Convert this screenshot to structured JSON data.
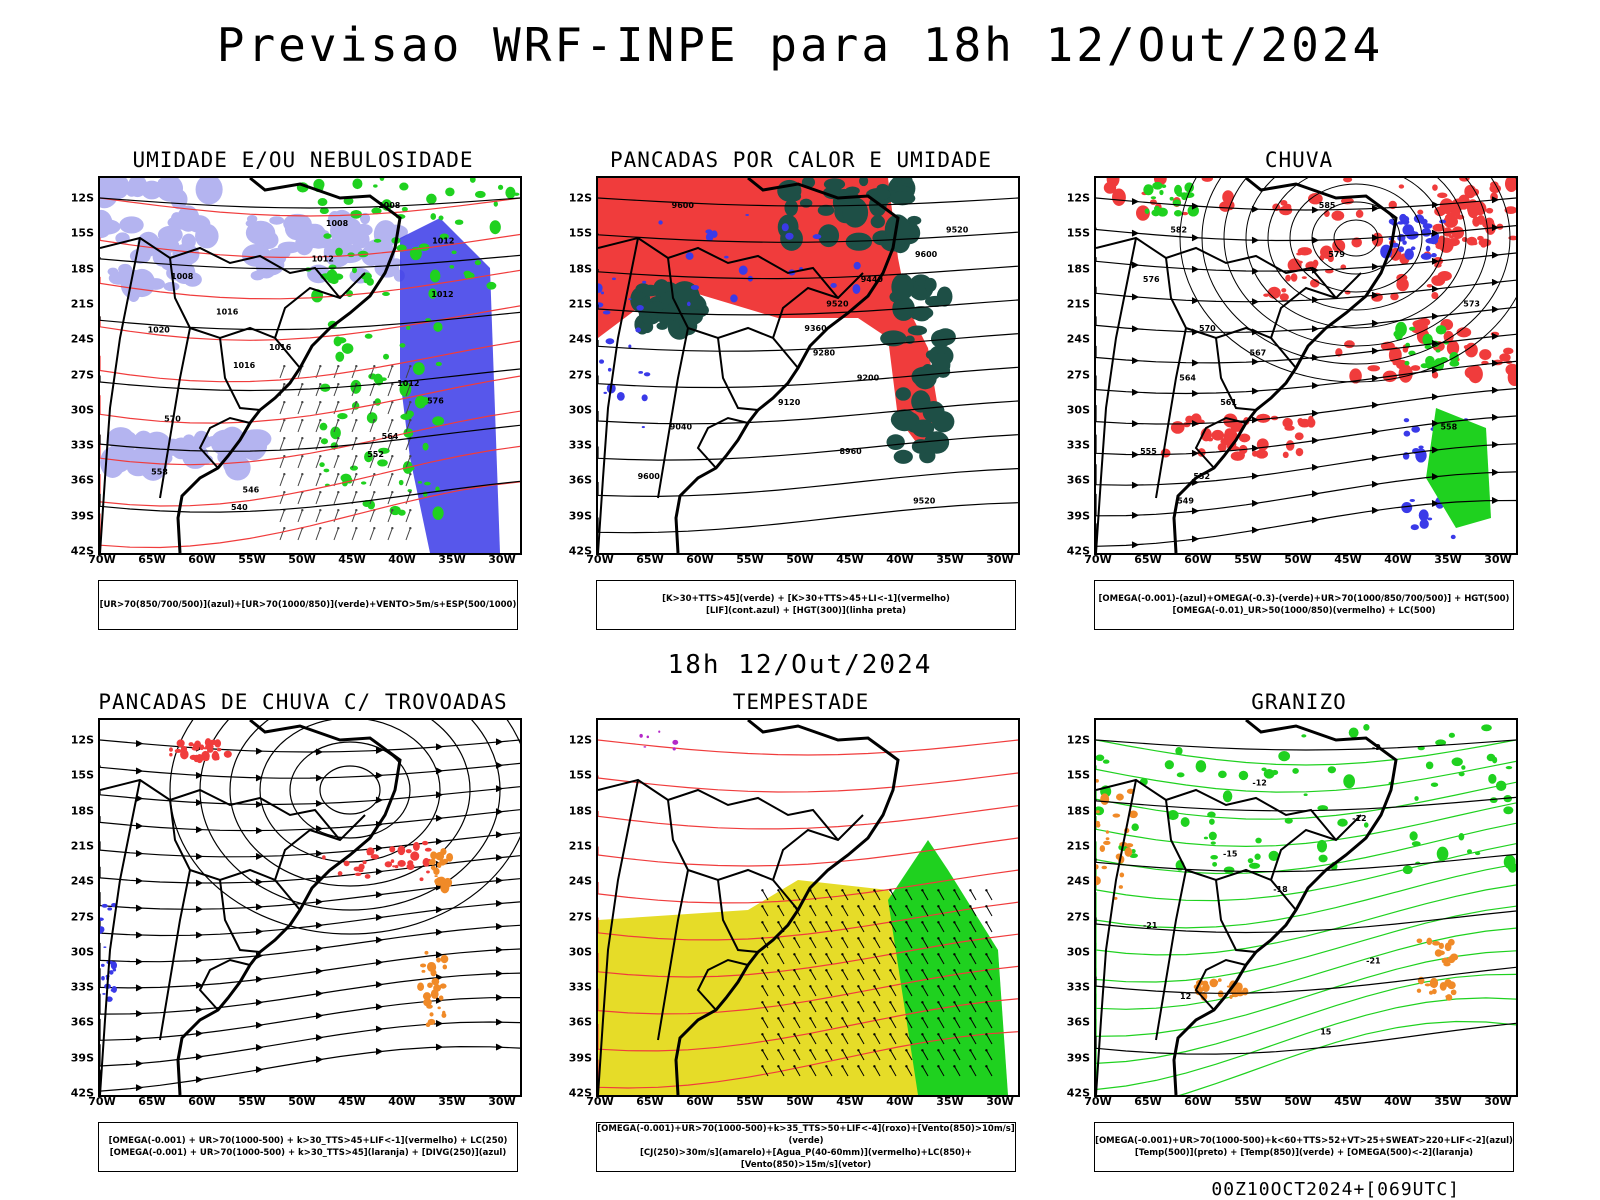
{
  "title": "Previsao WRF-INPE  para 18h 12/Out/2024",
  "subtitle": "18h 12/Out/2024",
  "footer": "00Z10OCT2024+[069UTC]",
  "lat_labels": [
    "12S",
    "15S",
    "18S",
    "21S",
    "24S",
    "27S",
    "30S",
    "33S",
    "36S",
    "39S",
    "42S"
  ],
  "lon_labels": [
    "70W",
    "65W",
    "60W",
    "55W",
    "50W",
    "45W",
    "40W",
    "35W",
    "30W"
  ],
  "colors": {
    "blue": "#3a3ae8",
    "lightblue": "#b4b4f0",
    "green": "#1fd11f",
    "red": "#f03c3c",
    "darkgreen": "#1e4f46",
    "yellow": "#e6dc28",
    "orange": "#f08a28",
    "purple": "#b428c8",
    "black": "#000000"
  },
  "panels": [
    {
      "title": "UMIDADE E/OU NEBULOSIDADE",
      "legend": [
        "[UR>70(850/700/500)](azul)+[UR>70(1000/850)](verde)+VENTO>5m/s+ESP(500/1000)"
      ],
      "contour_labels": [
        "1008",
        "1008",
        "1012",
        "1012",
        "1008",
        "1012",
        "1016",
        "1020",
        "1016",
        "1016",
        "1012",
        "576",
        "570",
        "564",
        "552",
        "558",
        "546",
        "540"
      ]
    },
    {
      "title": "PANCADAS POR CALOR E UMIDADE",
      "legend": [
        "[K>30+TTS>45](verde) + [K>30+TTS>45+LI<-1](vermelho)",
        "[LIF](cont.azul) + [HGT(300)](linha preta)"
      ],
      "contour_labels": [
        "9600",
        "9520",
        "9600",
        "9440",
        "9520",
        "9360",
        "9280",
        "9200",
        "9120",
        "9040",
        "8960",
        "9600",
        "9520"
      ]
    },
    {
      "title": "CHUVA",
      "legend": [
        "[OMEGA(-0.001)-(azul)+OMEGA(-0.3)-(verde)+UR>70(1000/850/700/500)] + HGT(500)",
        "[OMEGA(-0.01)_UR>50(1000/850)(vermelho) + LC(500)"
      ],
      "contour_labels": [
        "585",
        "582",
        "579",
        "576",
        "573",
        "570",
        "567",
        "564",
        "561",
        "558",
        "555",
        "552",
        "549"
      ]
    },
    {
      "title": "PANCADAS DE CHUVA C/ TROVOADAS",
      "legend": [
        "[OMEGA(-0.001) + UR>70(1000-500) + k>30_TTS>45+LIF<-1](vermelho) + LC(250)",
        "[OMEGA(-0.001) + UR>70(1000-500) + k>30_TTS>45](laranja) + [DIVG(250)](azul)"
      ],
      "contour_labels": []
    },
    {
      "title": "TEMPESTADE",
      "legend": [
        "[OMEGA(-0.001)+UR>70(1000-500)+k>35_TTS>50+LIF<-4](roxo)+[Vento(850)>10m/s](verde)",
        "[CJ(250)>30m/s](amarelo)+[Agua_P(40-60mm)](vermelho)+LC(850)+[Vento(850)>15m/s](vetor)"
      ],
      "contour_labels": []
    },
    {
      "title": "GRANIZO",
      "legend": [
        "[OMEGA(-0.001)+UR>70(1000-500)+k<60+TTS>52+VT>25+SWEAT>220+LIF<-2](azul)",
        "[Temp(500)](preto) + [Temp(850)](verde) + [OMEGA(500)<-2](laranja)"
      ],
      "contour_labels": [
        "-9",
        "-12",
        "-12",
        "-15",
        "-18",
        "-21",
        "-21",
        "12",
        "15"
      ]
    }
  ]
}
